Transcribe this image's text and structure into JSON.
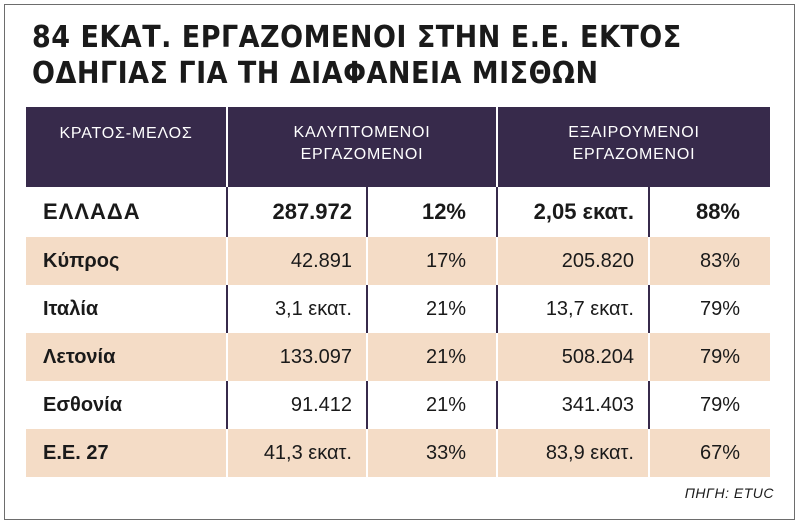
{
  "title_lines": [
    "84 ΕΚΑΤ. ΕΡΓΑΖΟΜΕΝΟΙ ΣΤΗΝ Ε.Ε. ΕΚΤΟΣ",
    "ΟΔΗΓΙΑΣ ΓΙΑ ΤΗ ΔΙΑΦΑΝΕΙΑ ΜΙΣΘΩΝ"
  ],
  "headers": {
    "state": "ΚΡΑΤΟΣ-ΜΕΛΟΣ",
    "covered": [
      "ΚΑΛΥΠΤΟΜΕΝΟΙ",
      "ΕΡΓΑΖΟΜΕΝΟΙ"
    ],
    "exempt": [
      "ΕΞΑΙΡΟΥΜΕΝΟΙ",
      "ΕΡΓΑΖΟΜΕΝΟΙ"
    ]
  },
  "source": "ΠΗΓΗ: ETUC",
  "colors": {
    "header_bg": "#372a4b",
    "stripe": "#f4dcc6"
  },
  "chart_data": {
    "type": "table",
    "columns": [
      "ΚΡΑΤΟΣ-ΜΕΛΟΣ",
      "ΚΑΛΥΠΤΟΜΕΝΟΙ ΕΡΓΑΖΟΜΕΝΟΙ",
      "%",
      "ΕΞΑΙΡΟΥΜΕΝΟΙ ΕΡΓΑΖΟΜΕΝΟΙ",
      "%"
    ],
    "rows": [
      {
        "country": "ΕΛΛΑΔΑ",
        "covered": "287.972",
        "covered_pct": "12%",
        "exempt": "2,05 εκατ.",
        "exempt_pct": "88%"
      },
      {
        "country": "Κύπρος",
        "covered": "42.891",
        "covered_pct": "17%",
        "exempt": "205.820",
        "exempt_pct": "83%"
      },
      {
        "country": "Ιταλία",
        "covered": "3,1 εκατ.",
        "covered_pct": "21%",
        "exempt": "13,7 εκατ.",
        "exempt_pct": "79%"
      },
      {
        "country": "Λετονία",
        "covered": "133.097",
        "covered_pct": "21%",
        "exempt": "508.204",
        "exempt_pct": "79%"
      },
      {
        "country": "Εσθονία",
        "covered": "91.412",
        "covered_pct": "21%",
        "exempt": "341.403",
        "exempt_pct": "79%"
      },
      {
        "country": "Ε.Ε. 27",
        "covered": "41,3 εκατ.",
        "covered_pct": "33%",
        "exempt": "83,9 εκατ.",
        "exempt_pct": "67%"
      }
    ]
  }
}
